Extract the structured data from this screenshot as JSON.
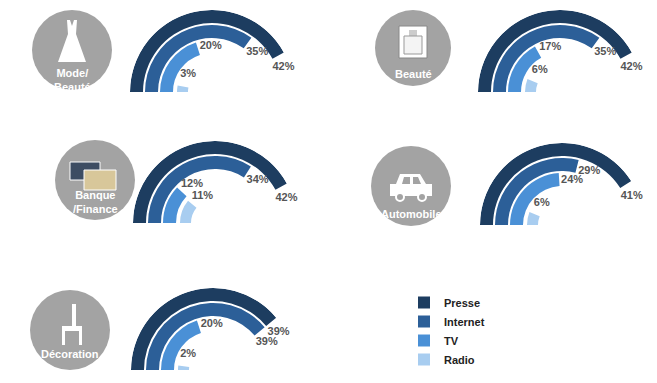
{
  "chart_data": {
    "type": "radial_bar",
    "categories": [
      "Mode/\nBeauté",
      "Beauté",
      "Banque\n/Finance",
      "Automobile",
      "Décoration"
    ],
    "series": [
      {
        "name": "Presse",
        "color": "#1d3d60",
        "values": [
          42,
          42,
          42,
          41,
          39
        ],
        "value_labels": [
          "42%",
          "42%",
          "42%",
          "41%",
          "39%"
        ]
      },
      {
        "name": "Internet",
        "color": "#2c5f98",
        "values": [
          35,
          35,
          34,
          29,
          39
        ],
        "value_labels": [
          "35%",
          "35%",
          "34%",
          "29%",
          "39%"
        ]
      },
      {
        "name": "TV",
        "color": "#4a90d6",
        "values": [
          20,
          17,
          12,
          24,
          20
        ],
        "value_labels": [
          "20%",
          "17%",
          "12%",
          "24%",
          "20%"
        ]
      },
      {
        "name": "Radio",
        "color": "#a8cdf0",
        "values": [
          3,
          6,
          11,
          6,
          2
        ],
        "value_labels": [
          "3%",
          "6%",
          "11%",
          "6%",
          "2%"
        ]
      }
    ],
    "data_labels": true,
    "tick_labels": false,
    "legend": "bottom right"
  }
}
